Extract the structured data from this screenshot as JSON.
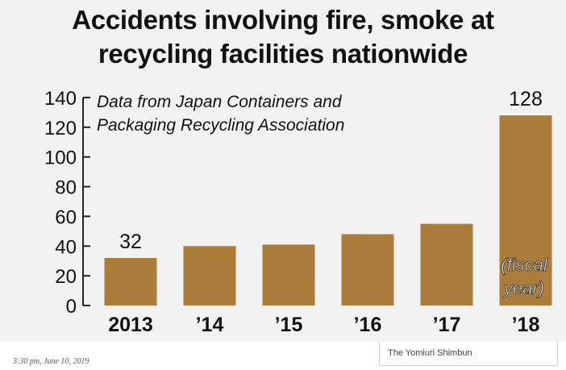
{
  "chart_data": {
    "type": "bar",
    "title_lines": [
      "Accidents involving fire, smoke at",
      "recycling facilities nationwide"
    ],
    "source_lines": [
      "Data from Japan Containers and",
      "Packaging Recycling Association"
    ],
    "categories": [
      "2013",
      "’14",
      "’15",
      "’16",
      "’17",
      "’18"
    ],
    "values": [
      32,
      40,
      41,
      48,
      55,
      128
    ],
    "data_labels": [
      {
        "index": 0,
        "text": "32"
      },
      {
        "index": 5,
        "text": "128"
      }
    ],
    "unit_note_lines": [
      "(fiscal",
      "year)"
    ],
    "ylim": [
      0,
      140
    ],
    "yticks": [
      0,
      20,
      40,
      60,
      80,
      100,
      120,
      140
    ],
    "ytick_labels": [
      "0",
      "20",
      "40",
      "60",
      "80",
      "100",
      "120",
      "140"
    ],
    "xlabel": "",
    "ylabel": "",
    "grid": false,
    "legend": "none",
    "bar_color": "#ab7c3a",
    "axis_color": "#222222"
  },
  "footer": {
    "timestamp": "3:30 pm, June 10, 2019",
    "credit": "The Yomiuri Shimbun"
  }
}
